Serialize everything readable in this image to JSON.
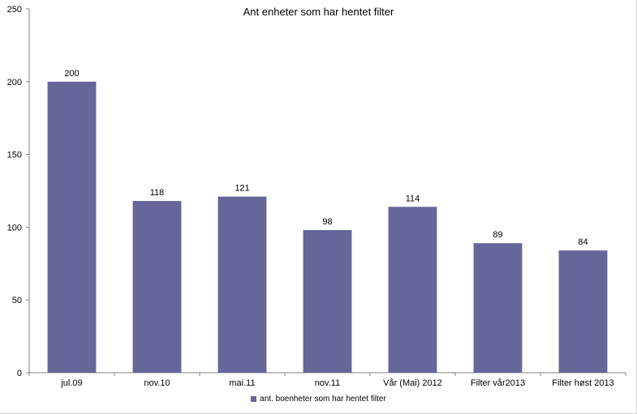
{
  "chart_data": {
    "type": "bar",
    "title": "Ant enheter som har hentet filter",
    "xlabel": "",
    "ylabel": "",
    "categories": [
      "jul.09",
      "nov.10",
      "mai.11",
      "nov.11",
      "Vår (Mai) 2012",
      "Filter vår2013",
      "Filter høst 2013"
    ],
    "series": [
      {
        "name": "ant. boenheter som har hentet filter",
        "values": [
          200,
          118,
          121,
          98,
          114,
          89,
          84
        ]
      }
    ],
    "ylim": [
      0,
      250
    ],
    "yticks": [
      0,
      50,
      100,
      150,
      200,
      250
    ],
    "data_labels": true,
    "grid": false,
    "legend_position": "bottom",
    "colors": {
      "bar": "#666699",
      "axis": "#808080"
    }
  }
}
